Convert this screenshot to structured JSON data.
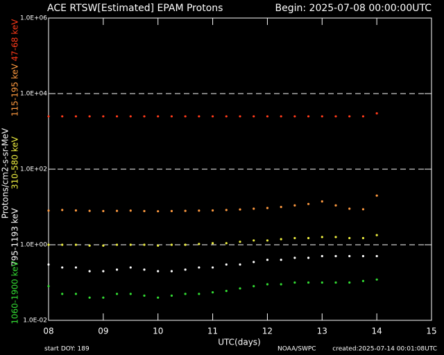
{
  "chart_data": {
    "type": "scatter",
    "title": "ACE RTSW[Estimated] EPAM Protons",
    "subtitle": "Begin: 2025-07-08 00:00:00UTC",
    "x_label": "UTC(days)",
    "y_label": "Protons/cm2-s-sr-MeV",
    "footer_left": "start DOY:  189",
    "footer_center": "NOAA/SWPC",
    "footer_right": "created:2025-07-14 00:01:08UTC",
    "log_y": true,
    "grid": true,
    "xlim": [
      8,
      15
    ],
    "ylim": [
      0.01,
      1000000
    ],
    "xticks": [
      {
        "value": 8,
        "label": "08"
      },
      {
        "value": 9,
        "label": "09"
      },
      10,
      11,
      12,
      13,
      14,
      15
    ],
    "yticks": [
      {
        "value": 0.01,
        "label": "1.0E-02"
      },
      {
        "value": 1,
        "label": "1.0E+00"
      },
      {
        "value": 100,
        "label": "1.0E+02"
      },
      {
        "value": 10000,
        "label": "1.0E+04"
      },
      {
        "value": 1000000,
        "label": "1.0E+06"
      }
    ],
    "x": [
      8,
      8.25,
      8.5,
      8.75,
      9,
      9.25,
      9.5,
      9.75,
      10,
      10.25,
      10.5,
      10.75,
      11,
      11.25,
      11.5,
      11.75,
      12,
      12.25,
      12.5,
      12.75,
      13,
      13.25,
      13.5,
      13.75,
      14
    ],
    "series": [
      {
        "name": "47-68 keV",
        "color": "#ff3a1a",
        "values": [
          2500,
          2500,
          2500,
          2500,
          2500,
          2500,
          2500,
          2500,
          2500,
          2500,
          2500,
          2500,
          2500,
          2500,
          2500,
          2500,
          2500,
          2500,
          2500,
          2500,
          2500,
          2500,
          2500,
          2500,
          3000
        ]
      },
      {
        "name": "115-195 keV",
        "color": "#ff9a40",
        "values": [
          8,
          8.3,
          8.1,
          7.9,
          7.8,
          7.9,
          8,
          7.8,
          7.7,
          7.8,
          7.9,
          8,
          8.1,
          8.3,
          8.6,
          9,
          9.4,
          10,
          11,
          12,
          14,
          11,
          9,
          8.7,
          20
        ]
      },
      {
        "name": "310-580 keV",
        "color": "#f0f040",
        "values": [
          1,
          1,
          1,
          0.95,
          0.95,
          1,
          1,
          1,
          0.95,
          1,
          1,
          1.05,
          1.1,
          1.1,
          1.2,
          1.3,
          1.3,
          1.4,
          1.5,
          1.5,
          1.6,
          1.6,
          1.5,
          1.5,
          1.8
        ]
      },
      {
        "name": "795-1193 keV",
        "color": "#ffffff",
        "values": [
          0.3,
          0.25,
          0.25,
          0.2,
          0.2,
          0.22,
          0.25,
          0.22,
          0.2,
          0.2,
          0.22,
          0.25,
          0.25,
          0.3,
          0.3,
          0.35,
          0.4,
          0.4,
          0.45,
          0.45,
          0.5,
          0.5,
          0.5,
          0.5,
          0.5
        ]
      },
      {
        "name": "1060-1900 keV",
        "color": "#33dd33",
        "values": [
          0.08,
          0.05,
          0.05,
          0.04,
          0.04,
          0.05,
          0.05,
          0.045,
          0.04,
          0.045,
          0.05,
          0.05,
          0.055,
          0.06,
          0.07,
          0.08,
          0.09,
          0.09,
          0.1,
          0.1,
          0.1,
          0.1,
          0.1,
          0.11,
          0.12
        ]
      }
    ]
  }
}
